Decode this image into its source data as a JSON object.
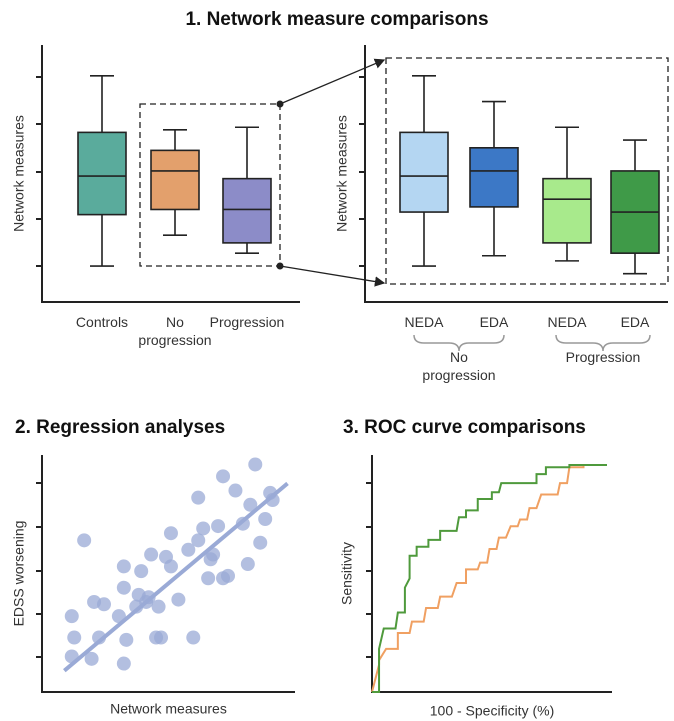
{
  "chart_data": [
    {
      "type": "box",
      "title": "1. Network measure comparisons",
      "ylabel": "Network measures",
      "ylim": [
        0,
        100
      ],
      "categories": [
        "Controls",
        "No progression",
        "Progression"
      ],
      "boxes": [
        {
          "color": "#5aab9c",
          "whisker_low": 14,
          "q1": 34,
          "median": 49,
          "q3": 66,
          "whisker_high": 88
        },
        {
          "color": "#e3a06c",
          "whisker_low": 26,
          "q1": 36,
          "median": 51,
          "q3": 59,
          "whisker_high": 67
        },
        {
          "color": "#8c8cc8",
          "whisker_low": 19,
          "q1": 23,
          "median": 36,
          "q3": 48,
          "whisker_high": 68
        }
      ]
    },
    {
      "type": "box",
      "ylabel": "Network measures",
      "ylim": [
        0,
        100
      ],
      "categories": [
        "NEDA",
        "EDA",
        "NEDA",
        "EDA"
      ],
      "group_labels": [
        "No progression",
        "Progression"
      ],
      "boxes": [
        {
          "color": "#b4d6f2",
          "whisker_low": 14,
          "q1": 35,
          "median": 49,
          "q3": 66,
          "whisker_high": 88
        },
        {
          "color": "#3c78c6",
          "whisker_low": 18,
          "q1": 37,
          "median": 51,
          "q3": 60,
          "whisker_high": 78
        },
        {
          "color": "#a8ea8c",
          "whisker_low": 16,
          "q1": 23,
          "median": 40,
          "q3": 48,
          "whisker_high": 68
        },
        {
          "color": "#3f9a48",
          "whisker_low": 11,
          "q1": 19,
          "median": 35,
          "q3": 51,
          "whisker_high": 63
        }
      ]
    },
    {
      "type": "scatter",
      "title": "2. Regression analyses",
      "xlabel": "Network measures",
      "ylabel": "EDSS worsening",
      "xlim": [
        0,
        100
      ],
      "ylim": [
        0,
        100
      ],
      "color": "#9aaad6",
      "x": [
        17,
        12,
        13,
        12,
        21,
        25,
        20,
        23,
        31,
        33,
        33,
        34,
        33,
        38,
        39,
        40,
        42,
        43,
        44,
        47,
        46,
        48,
        50,
        52,
        52,
        55,
        59,
        61,
        63,
        63,
        65,
        67,
        68,
        69,
        71,
        73,
        73,
        75,
        78,
        81,
        83,
        84,
        86,
        88,
        90,
        92,
        93
      ],
      "y": [
        64,
        32,
        23,
        15,
        38,
        37,
        14,
        23,
        32,
        53,
        44,
        22,
        12,
        36,
        41,
        51,
        38,
        40,
        58,
        36,
        23,
        23,
        57,
        67,
        53,
        39,
        60,
        23,
        82,
        64,
        69,
        48,
        56,
        58,
        70,
        48,
        91,
        49,
        85,
        71,
        54,
        79,
        96,
        63,
        73,
        84,
        81
      ],
      "fit_line": {
        "x": [
          9,
          99
        ],
        "y": [
          9,
          88
        ]
      }
    },
    {
      "type": "line",
      "title": "3. ROC curve comparisons",
      "xlabel": "100 - Specificity (%)",
      "ylabel": "Sensitivity",
      "xlim": [
        0,
        100
      ],
      "ylim": [
        0,
        100
      ],
      "series": [
        {
          "color": "#4f9a3c",
          "x": [
            0,
            3,
            3,
            5,
            10,
            11,
            14,
            14,
            16,
            16,
            19,
            19,
            24,
            24,
            29,
            29,
            36,
            37,
            40,
            40,
            45,
            45,
            51,
            51,
            54,
            55,
            70,
            70,
            74,
            74,
            84,
            84,
            100
          ],
          "y": [
            0,
            0,
            19,
            28,
            28,
            35,
            35,
            46,
            50,
            60,
            60,
            64,
            64,
            67,
            67,
            71,
            71,
            77,
            77,
            80,
            80,
            85,
            85,
            88,
            88,
            92,
            92,
            96,
            96,
            99,
            99,
            100,
            100
          ]
        },
        {
          "color": "#f0a062",
          "x": [
            0,
            3,
            3,
            6,
            11,
            11,
            16,
            17,
            22,
            23,
            28,
            29,
            34,
            36,
            40,
            40,
            45,
            46,
            49,
            50,
            53,
            54,
            57,
            59,
            62,
            63,
            66,
            67,
            70,
            72,
            79,
            80,
            83,
            84,
            90,
            90,
            100
          ],
          "y": [
            0,
            12,
            14,
            19,
            19,
            26,
            26,
            31,
            31,
            37,
            37,
            42,
            42,
            48,
            48,
            54,
            54,
            57,
            57,
            63,
            63,
            68,
            68,
            73,
            73,
            76,
            76,
            81,
            81,
            87,
            87,
            92,
            92,
            99,
            99,
            100,
            100
          ]
        }
      ]
    }
  ]
}
